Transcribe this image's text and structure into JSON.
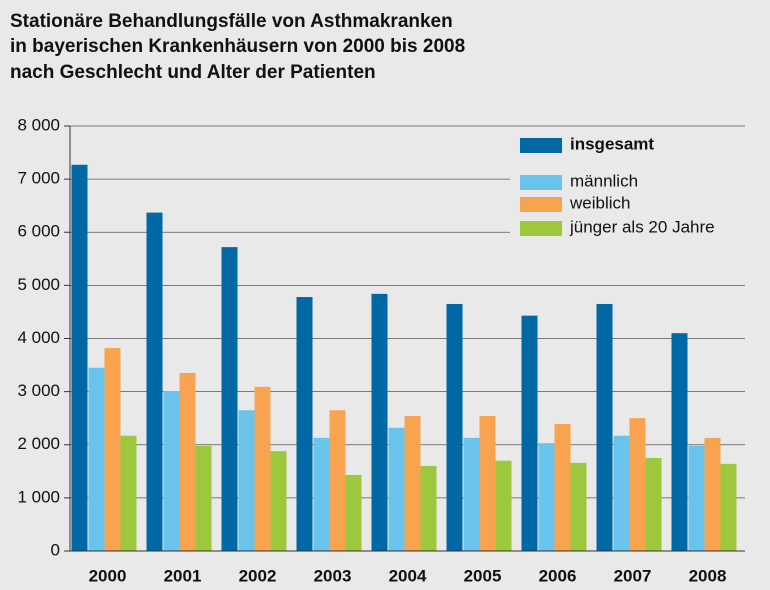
{
  "chart_data": {
    "type": "bar",
    "title": [
      "Stationäre Behandlungsfälle von Asthmakranken",
      "in bayerischen Krankenhäusern von 2000 bis 2008",
      "nach Geschlecht und Alter der Patienten"
    ],
    "categories": [
      "2000",
      "2001",
      "2002",
      "2003",
      "2004",
      "2005",
      "2006",
      "2007",
      "2008"
    ],
    "series": [
      {
        "name": "insgesamt",
        "color": "#0068a5",
        "values": [
          7270,
          6370,
          5720,
          4780,
          4840,
          4650,
          4430,
          4650,
          4100
        ]
      },
      {
        "name": "männlich",
        "color": "#6ac3ea",
        "values": [
          3450,
          3010,
          2650,
          2130,
          2320,
          2130,
          2030,
          2170,
          1980
        ]
      },
      {
        "name": "weiblich",
        "color": "#f7a350",
        "values": [
          3820,
          3350,
          3090,
          2650,
          2540,
          2540,
          2390,
          2500,
          2130
        ]
      },
      {
        "name": "jünger als 20 Jahre",
        "color": "#9dc83e",
        "values": [
          2170,
          1980,
          1880,
          1430,
          1600,
          1700,
          1660,
          1750,
          1640
        ]
      }
    ],
    "ylim": [
      0,
      8000
    ],
    "yticks": [
      0,
      {
        "value": 1000,
        "label": "1 000"
      },
      {
        "value": 2000,
        "label": "2 000"
      },
      {
        "value": 3000,
        "label": "3 000"
      },
      {
        "value": 4000,
        "label": "4 000"
      },
      {
        "value": 5000,
        "label": "5 000"
      },
      {
        "value": 6000,
        "label": "6 000"
      },
      {
        "value": 7000,
        "label": "7 000"
      },
      {
        "value": 8000,
        "label": "8 000"
      }
    ],
    "grid": true,
    "legend": "top-right"
  }
}
